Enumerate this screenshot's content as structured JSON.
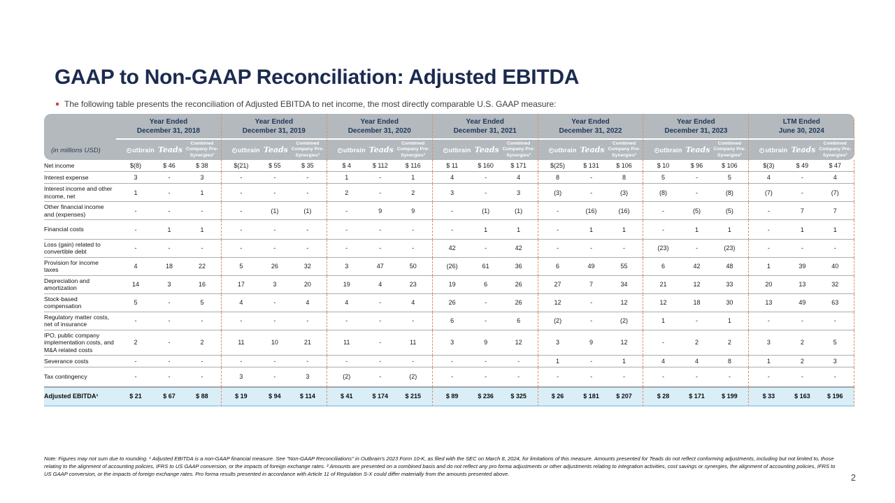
{
  "slide": {
    "title": "GAAP to Non-GAAP Reconciliation: Adjusted EBITDA",
    "bullet": "The following table presents the reconciliation of Adjusted EBITDA to net income, the most directly comparable U.S. GAAP measure:",
    "page_number": "2",
    "footnote": "Note: Figures may not sum due to rounding. ¹ Adjusted EBITDA is a non-GAAP financial measure. See \"Non-GAAP Reconciliations\" in Outbrain's 2023 Form 10-K, as filed with the SEC on March 8, 2024, for limitations of this measure. Amounts presented for Teads do not reflect conforming adjustments, including but not limited to, those relating to the alignment of accounting policies, IFRS to US GAAP conversion, or the impacts of foreign exchange rates. ² Amounts are presented on a combined basis and do not reflect any pro forma adjustments or other adjustments relating to integration activities, cost savings or synergies, the alignment of accounting policies, IFRS to US GAAP conversion, or the impacts of foreign exchange rates. Pro forma results presented in accordance with Article 11 of Regulation S-X could differ materially from the amounts presented above."
  },
  "colors": {
    "title_navy": "#1b2a4f",
    "header_gray": "#b3b9bd",
    "highlight_blue": "#d9eef7",
    "dash_orange": "#df8e5e",
    "bullet_red": "#c0504d"
  },
  "icons": {
    "bullet_marker": "small-square",
    "outbrain_o": "circle-with-dot"
  },
  "table": {
    "unit_label": "(in millions USD)",
    "groups": [
      {
        "line1": "Year Ended",
        "line2": "December 31, 2018"
      },
      {
        "line1": "Year Ended",
        "line2": "December 31, 2019"
      },
      {
        "line1": "Year Ended",
        "line2": "December 31, 2020"
      },
      {
        "line1": "Year Ended",
        "line2": "December 31, 2021"
      },
      {
        "line1": "Year Ended",
        "line2": "December 31, 2022"
      },
      {
        "line1": "Year Ended",
        "line2": "December 31, 2023"
      },
      {
        "line1": "LTM Ended",
        "line2": "June 30, 2024"
      }
    ],
    "subcolumns": [
      "Outbrain",
      "Teads",
      "Combined Company Pre-Synergies²"
    ],
    "rows": [
      {
        "label": "Net income",
        "values": [
          "$(8)",
          "$ 46",
          "$ 38",
          "$(21)",
          "$ 55",
          "$ 35",
          "$ 4",
          "$ 112",
          "$ 116",
          "$ 11",
          "$ 160",
          "$ 171",
          "$(25)",
          "$ 131",
          "$ 106",
          "$ 10",
          "$ 96",
          "$ 106",
          "$(3)",
          "$ 49",
          "$ 47"
        ]
      },
      {
        "label": "Interest expense",
        "values": [
          "3",
          "-",
          "3",
          "-",
          "-",
          "-",
          "1",
          "-",
          "1",
          "4",
          "-",
          "4",
          "8",
          "-",
          "8",
          "5",
          "-",
          "5",
          "4",
          "-",
          "4"
        ]
      },
      {
        "label": "Interest income and other income, net",
        "values": [
          "1",
          "-",
          "1",
          "-",
          "-",
          "-",
          "2",
          "-",
          "2",
          "3",
          "-",
          "3",
          "(3)",
          "-",
          "(3)",
          "(8)",
          "-",
          "(8)",
          "(7)",
          "-",
          "(7)"
        ]
      },
      {
        "label": "Other financial income and (expenses)",
        "values": [
          "-",
          "-",
          "-",
          "-",
          "(1)",
          "(1)",
          "-",
          "9",
          "9",
          "-",
          "(1)",
          "(1)",
          "-",
          "(16)",
          "(16)",
          "-",
          "(5)",
          "(5)",
          "-",
          "7",
          "7"
        ]
      },
      {
        "label": "Financial costs",
        "pad": true,
        "values": [
          "-",
          "1",
          "1",
          "-",
          "-",
          "-",
          "-",
          "-",
          "-",
          "-",
          "1",
          "1",
          "-",
          "1",
          "1",
          "-",
          "1",
          "1",
          "-",
          "1",
          "1"
        ]
      },
      {
        "label": "Loss (gain) related to convertible debt",
        "values": [
          "-",
          "-",
          "-",
          "-",
          "-",
          "-",
          "-",
          "-",
          "-",
          "42",
          "-",
          "42",
          "-",
          "-",
          "-",
          "(23)",
          "-",
          "(23)",
          "-",
          "-",
          "-"
        ]
      },
      {
        "label": "Provision for income taxes",
        "values": [
          "4",
          "18",
          "22",
          "5",
          "26",
          "32",
          "3",
          "47",
          "50",
          "(26)",
          "61",
          "36",
          "6",
          "49",
          "55",
          "6",
          "42",
          "48",
          "1",
          "39",
          "40"
        ]
      },
      {
        "label": "Depreciation and amortization",
        "values": [
          "14",
          "3",
          "16",
          "17",
          "3",
          "20",
          "19",
          "4",
          "23",
          "19",
          "6",
          "26",
          "27",
          "7",
          "34",
          "21",
          "12",
          "33",
          "20",
          "13",
          "32"
        ]
      },
      {
        "label": "Stock-based compensation",
        "values": [
          "5",
          "-",
          "5",
          "4",
          "-",
          "4",
          "4",
          "-",
          "4",
          "26",
          "-",
          "26",
          "12",
          "-",
          "12",
          "12",
          "18",
          "30",
          "13",
          "49",
          "63"
        ]
      },
      {
        "label": "Regulatory matter costs, net of insurance",
        "values": [
          "-",
          "-",
          "-",
          "-",
          "-",
          "-",
          "-",
          "-",
          "-",
          "6",
          "-",
          "6",
          "(2)",
          "-",
          "(2)",
          "1",
          "-",
          "1",
          "-",
          "-",
          "-"
        ]
      },
      {
        "label": "IPO, public company implementation costs,  and M&A related costs",
        "values": [
          "2",
          "-",
          "2",
          "11",
          "10",
          "21",
          "11",
          "-",
          "11",
          "3",
          "9",
          "12",
          "3",
          "9",
          "12",
          "-",
          "2",
          "2",
          "3",
          "2",
          "5"
        ]
      },
      {
        "label": "Severance costs",
        "values": [
          "-",
          "-",
          "-",
          "-",
          "-",
          "-",
          "-",
          "-",
          "-",
          "-",
          "-",
          "-",
          "1",
          "-",
          "1",
          "4",
          "4",
          "8",
          "1",
          "2",
          "3"
        ]
      },
      {
        "label": "Tax contingency",
        "pad": true,
        "values": [
          "-",
          "-",
          "-",
          "3",
          "-",
          "3",
          "(2)",
          "-",
          "(2)",
          "-",
          "-",
          "-",
          "-",
          "-",
          "-",
          "-",
          "-",
          "-",
          "-",
          "-",
          "-"
        ]
      },
      {
        "label": "Adjusted EBITDA¹",
        "highlight": true,
        "values": [
          "$ 21",
          "$ 67",
          "$ 88",
          "$ 19",
          "$ 94",
          "$ 114",
          "$ 41",
          "$ 174",
          "$ 215",
          "$ 89",
          "$ 236",
          "$ 325",
          "$ 26",
          "$ 181",
          "$ 207",
          "$ 28",
          "$ 171",
          "$ 199",
          "$ 33",
          "$ 163",
          "$ 196"
        ]
      }
    ]
  }
}
